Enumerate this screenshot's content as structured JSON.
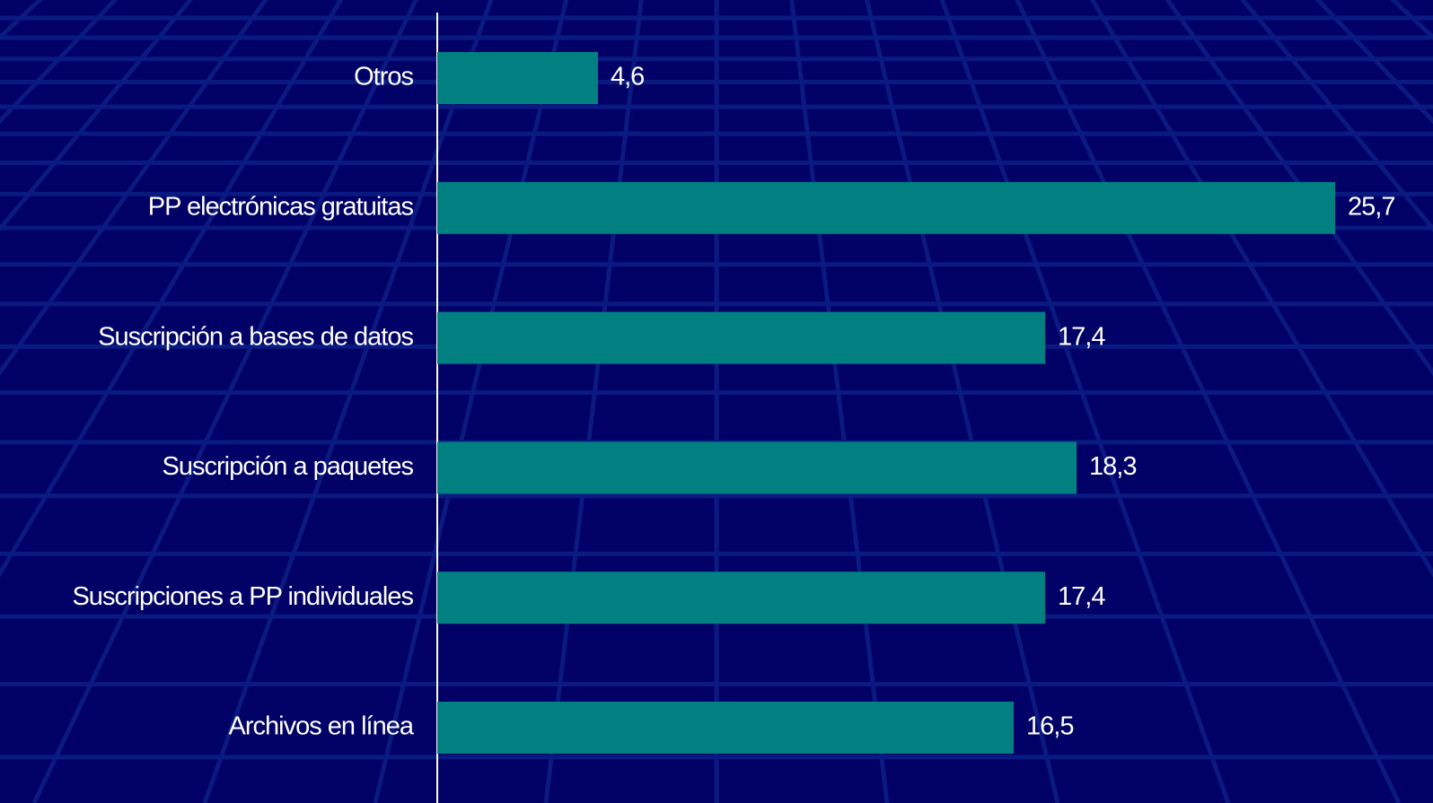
{
  "chart_data": {
    "type": "bar",
    "orientation": "horizontal",
    "categories": [
      "Otros",
      "PP electrónicas gratuitas",
      "Suscripción a bases de datos",
      "Suscripción a paquetes",
      "Suscripciones a PP individuales",
      "Archivos en línea"
    ],
    "values": [
      4.6,
      25.7,
      17.4,
      18.3,
      17.4,
      16.5
    ],
    "value_labels": [
      "4,6",
      "25,7",
      "17,4",
      "18,3",
      "17,4",
      "16,5"
    ],
    "color": "#008080",
    "grid": false
  }
}
